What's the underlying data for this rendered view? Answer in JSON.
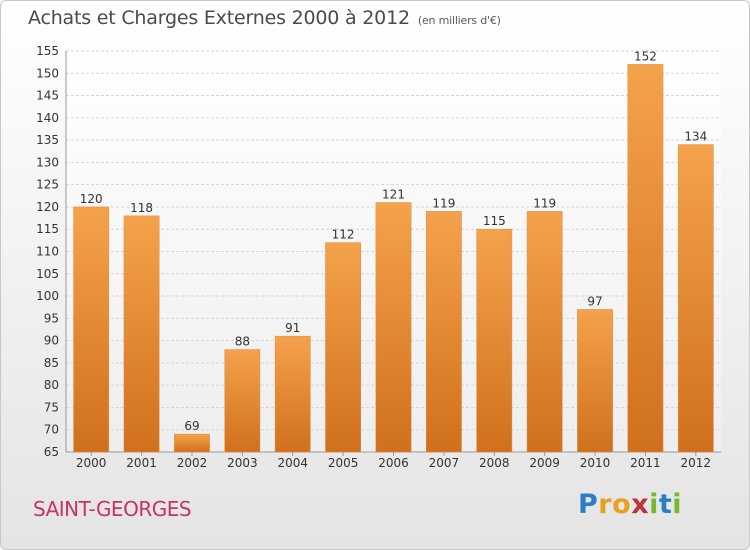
{
  "header": {
    "title": "Achats et Charges Externes 2000 à 2012",
    "subtitle": "(en milliers d'€)"
  },
  "footer": {
    "city": "SAINT-GEORGES",
    "logo_text": "Proxiti"
  },
  "colors": {
    "bar_light": "#f5a24c",
    "bar_dark": "#d0701c",
    "city": "#c83264"
  },
  "chart_data": {
    "type": "bar",
    "categories": [
      "2000",
      "2001",
      "2002",
      "2003",
      "2004",
      "2005",
      "2006",
      "2007",
      "2008",
      "2009",
      "2010",
      "2011",
      "2012"
    ],
    "values": [
      120,
      118,
      69,
      88,
      91,
      112,
      121,
      119,
      115,
      119,
      97,
      152,
      134
    ],
    "ylim": [
      65,
      155
    ],
    "yticks": [
      65,
      70,
      75,
      80,
      85,
      90,
      95,
      100,
      105,
      110,
      115,
      120,
      125,
      130,
      135,
      140,
      145,
      150,
      155
    ],
    "grid": true,
    "data_labels": true
  }
}
